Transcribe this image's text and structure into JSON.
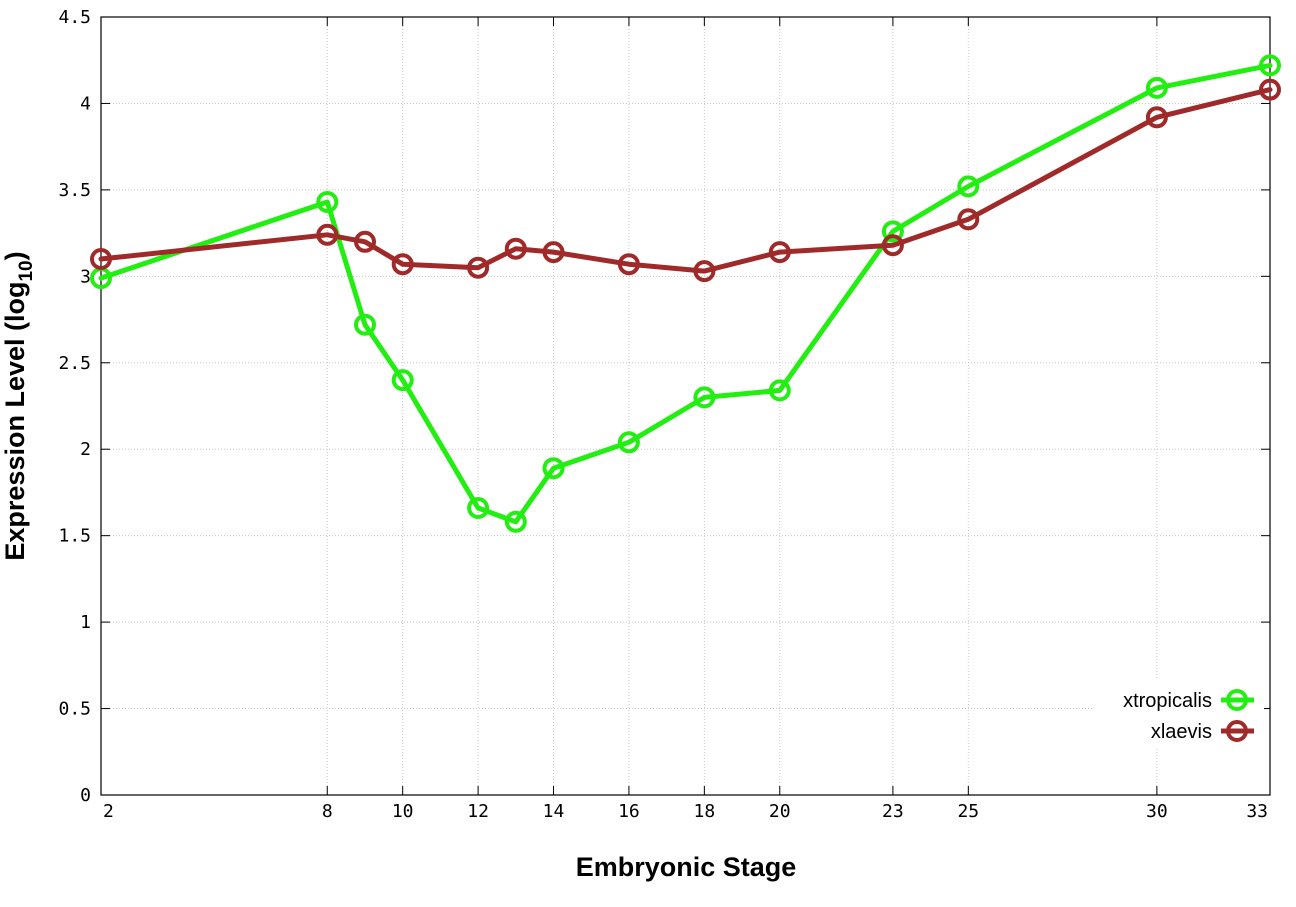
{
  "chart_data": {
    "type": "line",
    "x": [
      2,
      8,
      9,
      10,
      12,
      13,
      14,
      16,
      18,
      20,
      23,
      25,
      30,
      33
    ],
    "x_tick_labels": [
      "2",
      "8",
      "10",
      "12",
      "14",
      "16",
      "18",
      "20",
      "23",
      "25",
      "30",
      "33"
    ],
    "y_tick_labels": [
      "0",
      "0.5",
      "1",
      "1.5",
      "2",
      "2.5",
      "3",
      "3.5",
      "4",
      "4.5"
    ],
    "xlim": [
      2,
      33
    ],
    "ylim": [
      0,
      4.5
    ],
    "grid": true,
    "legend_position": "bottom-right",
    "xlabel": "Embryonic Stage",
    "ylabel": {
      "main": "Expression Level (log",
      "sub": "10",
      "end": ")"
    },
    "series": [
      {
        "name": "xtropicalis",
        "color": "#22ee11",
        "marker": "open-circle",
        "values": [
          2.99,
          3.43,
          2.72,
          2.4,
          1.66,
          1.58,
          1.89,
          2.04,
          2.3,
          2.34,
          3.26,
          3.52,
          4.09,
          4.22
        ]
      },
      {
        "name": "xlaevis",
        "color": "#a02a2a",
        "marker": "open-circle",
        "values": [
          3.1,
          3.24,
          3.2,
          3.07,
          3.05,
          3.16,
          3.14,
          3.07,
          3.03,
          3.14,
          3.18,
          3.33,
          3.92,
          4.08
        ]
      }
    ]
  }
}
